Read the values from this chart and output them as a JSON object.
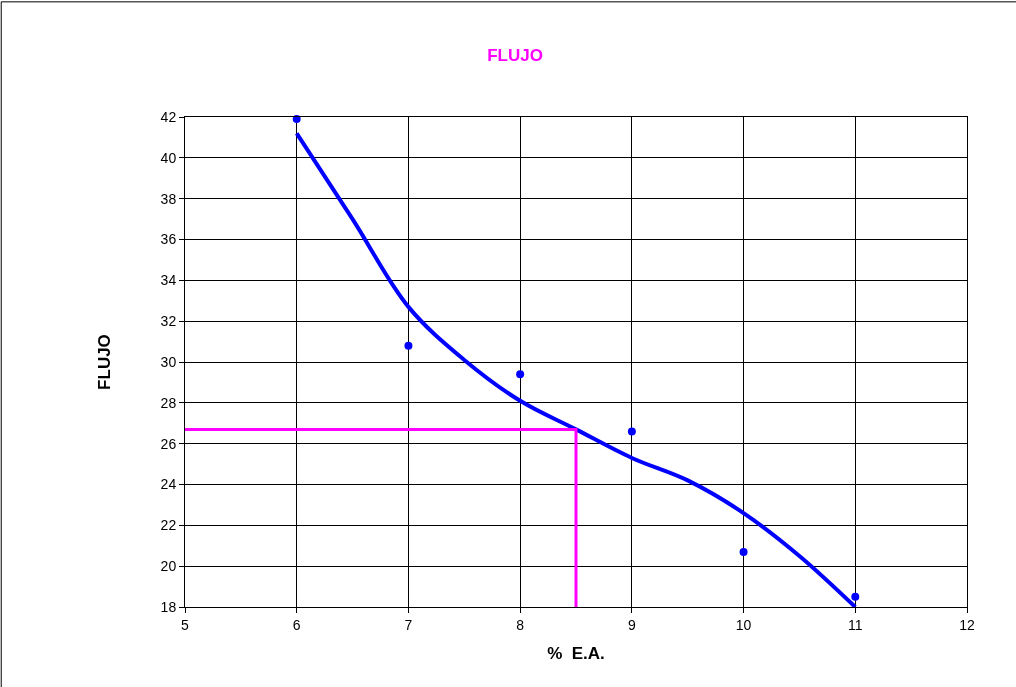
{
  "chart_data": {
    "type": "scatter",
    "title": "FLUJO",
    "xlabel": "%  E.A.",
    "ylabel": "FLUJO",
    "xlim": [
      5,
      12
    ],
    "xticks": [
      5,
      6,
      7,
      8,
      9,
      10,
      11,
      12
    ],
    "ylim": [
      18,
      42
    ],
    "yticks": [
      18,
      20,
      22,
      24,
      26,
      28,
      30,
      32,
      34,
      36,
      38,
      40,
      42
    ],
    "grid": true,
    "series": [
      {
        "type": "line",
        "color": "#0000ff",
        "marker": "none",
        "x": [
          6,
          6.5,
          7,
          7.5,
          8,
          8.5,
          9,
          9.5,
          10,
          10.5,
          11
        ],
        "values": [
          41.2,
          37.0,
          32.7,
          30.1,
          28.1,
          26.7,
          25.3,
          24.2,
          22.6,
          20.5,
          18.0
        ]
      },
      {
        "type": "line",
        "color": "#ff00ff",
        "marker": "none",
        "x": [
          5,
          8.5,
          8.5
        ],
        "values": [
          26.7,
          26.7,
          18
        ]
      },
      {
        "color": "#0000ff",
        "marker": "circle",
        "x": [
          6,
          7,
          8,
          9,
          10,
          11
        ],
        "values": [
          41.9,
          30.8,
          29.4,
          26.6,
          20.7,
          18.5
        ]
      }
    ]
  }
}
